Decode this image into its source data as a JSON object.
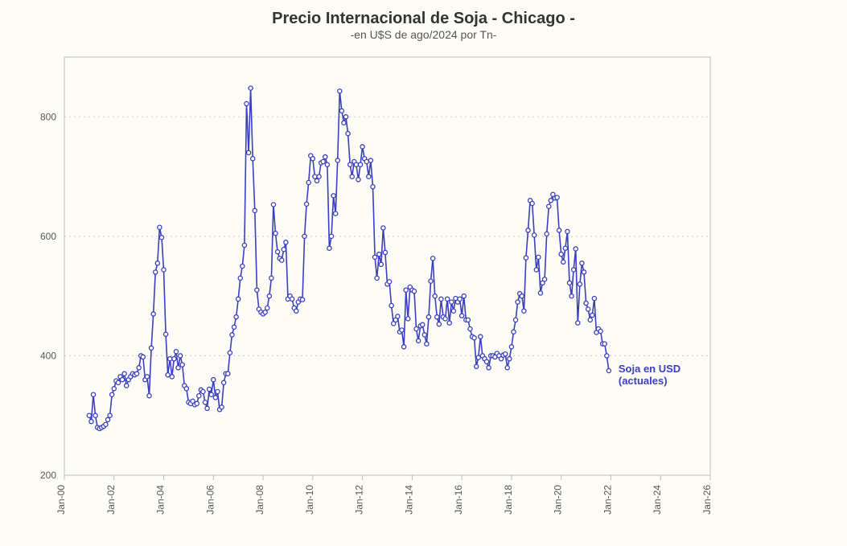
{
  "chart": {
    "type": "line",
    "title": "Precio Internacional de Soja - Chicago -",
    "subtitle": "-en U$S de ago/2024 por Tn-",
    "title_fontsize": 20,
    "subtitle_fontsize": 14,
    "title_color": "#333333",
    "subtitle_color": "#555555",
    "background_color": "#fdfcf7",
    "plot_border_color": "#bbbbbb",
    "grid_color": "#cccccc",
    "grid_dash": "2 4",
    "axis_text_color": "#555555",
    "axis_fontsize": 12,
    "line_color": "#3a3fbf",
    "line_width": 1.6,
    "marker_color": "#3a3fbf",
    "marker_fill": "#ffffff",
    "marker_radius": 2.6,
    "series_label": "Soja en USD (actuales)",
    "series_label_color": "#3a3fbf",
    "series_label_fontsize": 13,
    "x_start": 0,
    "x_end": 312,
    "x_ticks": [
      0,
      24,
      48,
      72,
      96,
      120,
      144,
      168,
      192,
      216,
      240,
      264,
      288,
      312
    ],
    "x_tick_labels": [
      "Jan-00",
      "Jan-02",
      "Jan-04",
      "Jan-06",
      "Jan-08",
      "Jan-10",
      "Jan-12",
      "Jan-14",
      "Jan-16",
      "Jan-18",
      "Jan-20",
      "Jan-22",
      "Jan-24",
      "Jan-26"
    ],
    "y_min": 200,
    "y_max": 900,
    "y_ticks": [
      200,
      400,
      600,
      800
    ],
    "data_start_x": 12,
    "values": [
      300,
      290,
      335,
      300,
      280,
      278,
      280,
      282,
      285,
      293,
      300,
      335,
      345,
      358,
      355,
      365,
      360,
      370,
      350,
      360,
      365,
      370,
      368,
      370,
      380,
      400,
      398,
      360,
      365,
      333,
      413,
      470,
      540,
      555,
      615,
      598,
      544,
      436,
      368,
      395,
      365,
      395,
      407,
      380,
      400,
      385,
      350,
      345,
      322,
      320,
      324,
      318,
      320,
      333,
      343,
      340,
      322,
      312,
      344,
      335,
      360,
      330,
      340,
      310,
      314,
      355,
      370,
      370,
      405,
      435,
      448,
      465,
      495,
      530,
      550,
      585,
      822,
      740,
      848,
      730,
      643,
      510,
      478,
      473,
      470,
      473,
      480,
      500,
      530,
      653,
      605,
      574,
      563,
      560,
      578,
      590,
      495,
      500,
      495,
      480,
      475,
      490,
      495,
      494,
      600,
      654,
      690,
      735,
      730,
      700,
      693,
      700,
      723,
      725,
      733,
      720,
      580,
      600,
      668,
      638,
      727,
      843,
      810,
      790,
      800,
      772,
      720,
      700,
      725,
      720,
      695,
      720,
      750,
      730,
      725,
      700,
      727,
      683,
      565,
      530,
      570,
      553,
      614,
      573,
      520,
      524,
      484,
      454,
      460,
      466,
      440,
      443,
      415,
      510,
      462,
      515,
      510,
      508,
      445,
      425,
      450,
      452,
      435,
      420,
      465,
      525,
      563,
      500,
      465,
      453,
      495,
      465,
      462,
      495,
      455,
      490,
      475,
      496,
      490,
      495,
      467,
      500,
      460,
      460,
      445,
      432,
      430,
      382,
      397,
      432,
      400,
      395,
      390,
      380,
      400,
      400,
      398,
      404,
      400,
      395,
      401,
      403,
      380,
      395,
      415,
      440,
      460,
      490,
      504,
      500,
      475,
      564,
      610,
      660,
      655,
      602,
      544,
      565,
      505,
      522,
      528,
      604,
      650,
      660,
      670,
      664,
      665,
      610,
      570,
      557,
      580,
      608,
      522,
      500,
      544,
      579,
      455,
      520,
      555,
      540,
      488,
      478,
      460,
      468,
      496,
      439,
      445,
      441,
      420,
      420,
      400,
      375
    ]
  }
}
